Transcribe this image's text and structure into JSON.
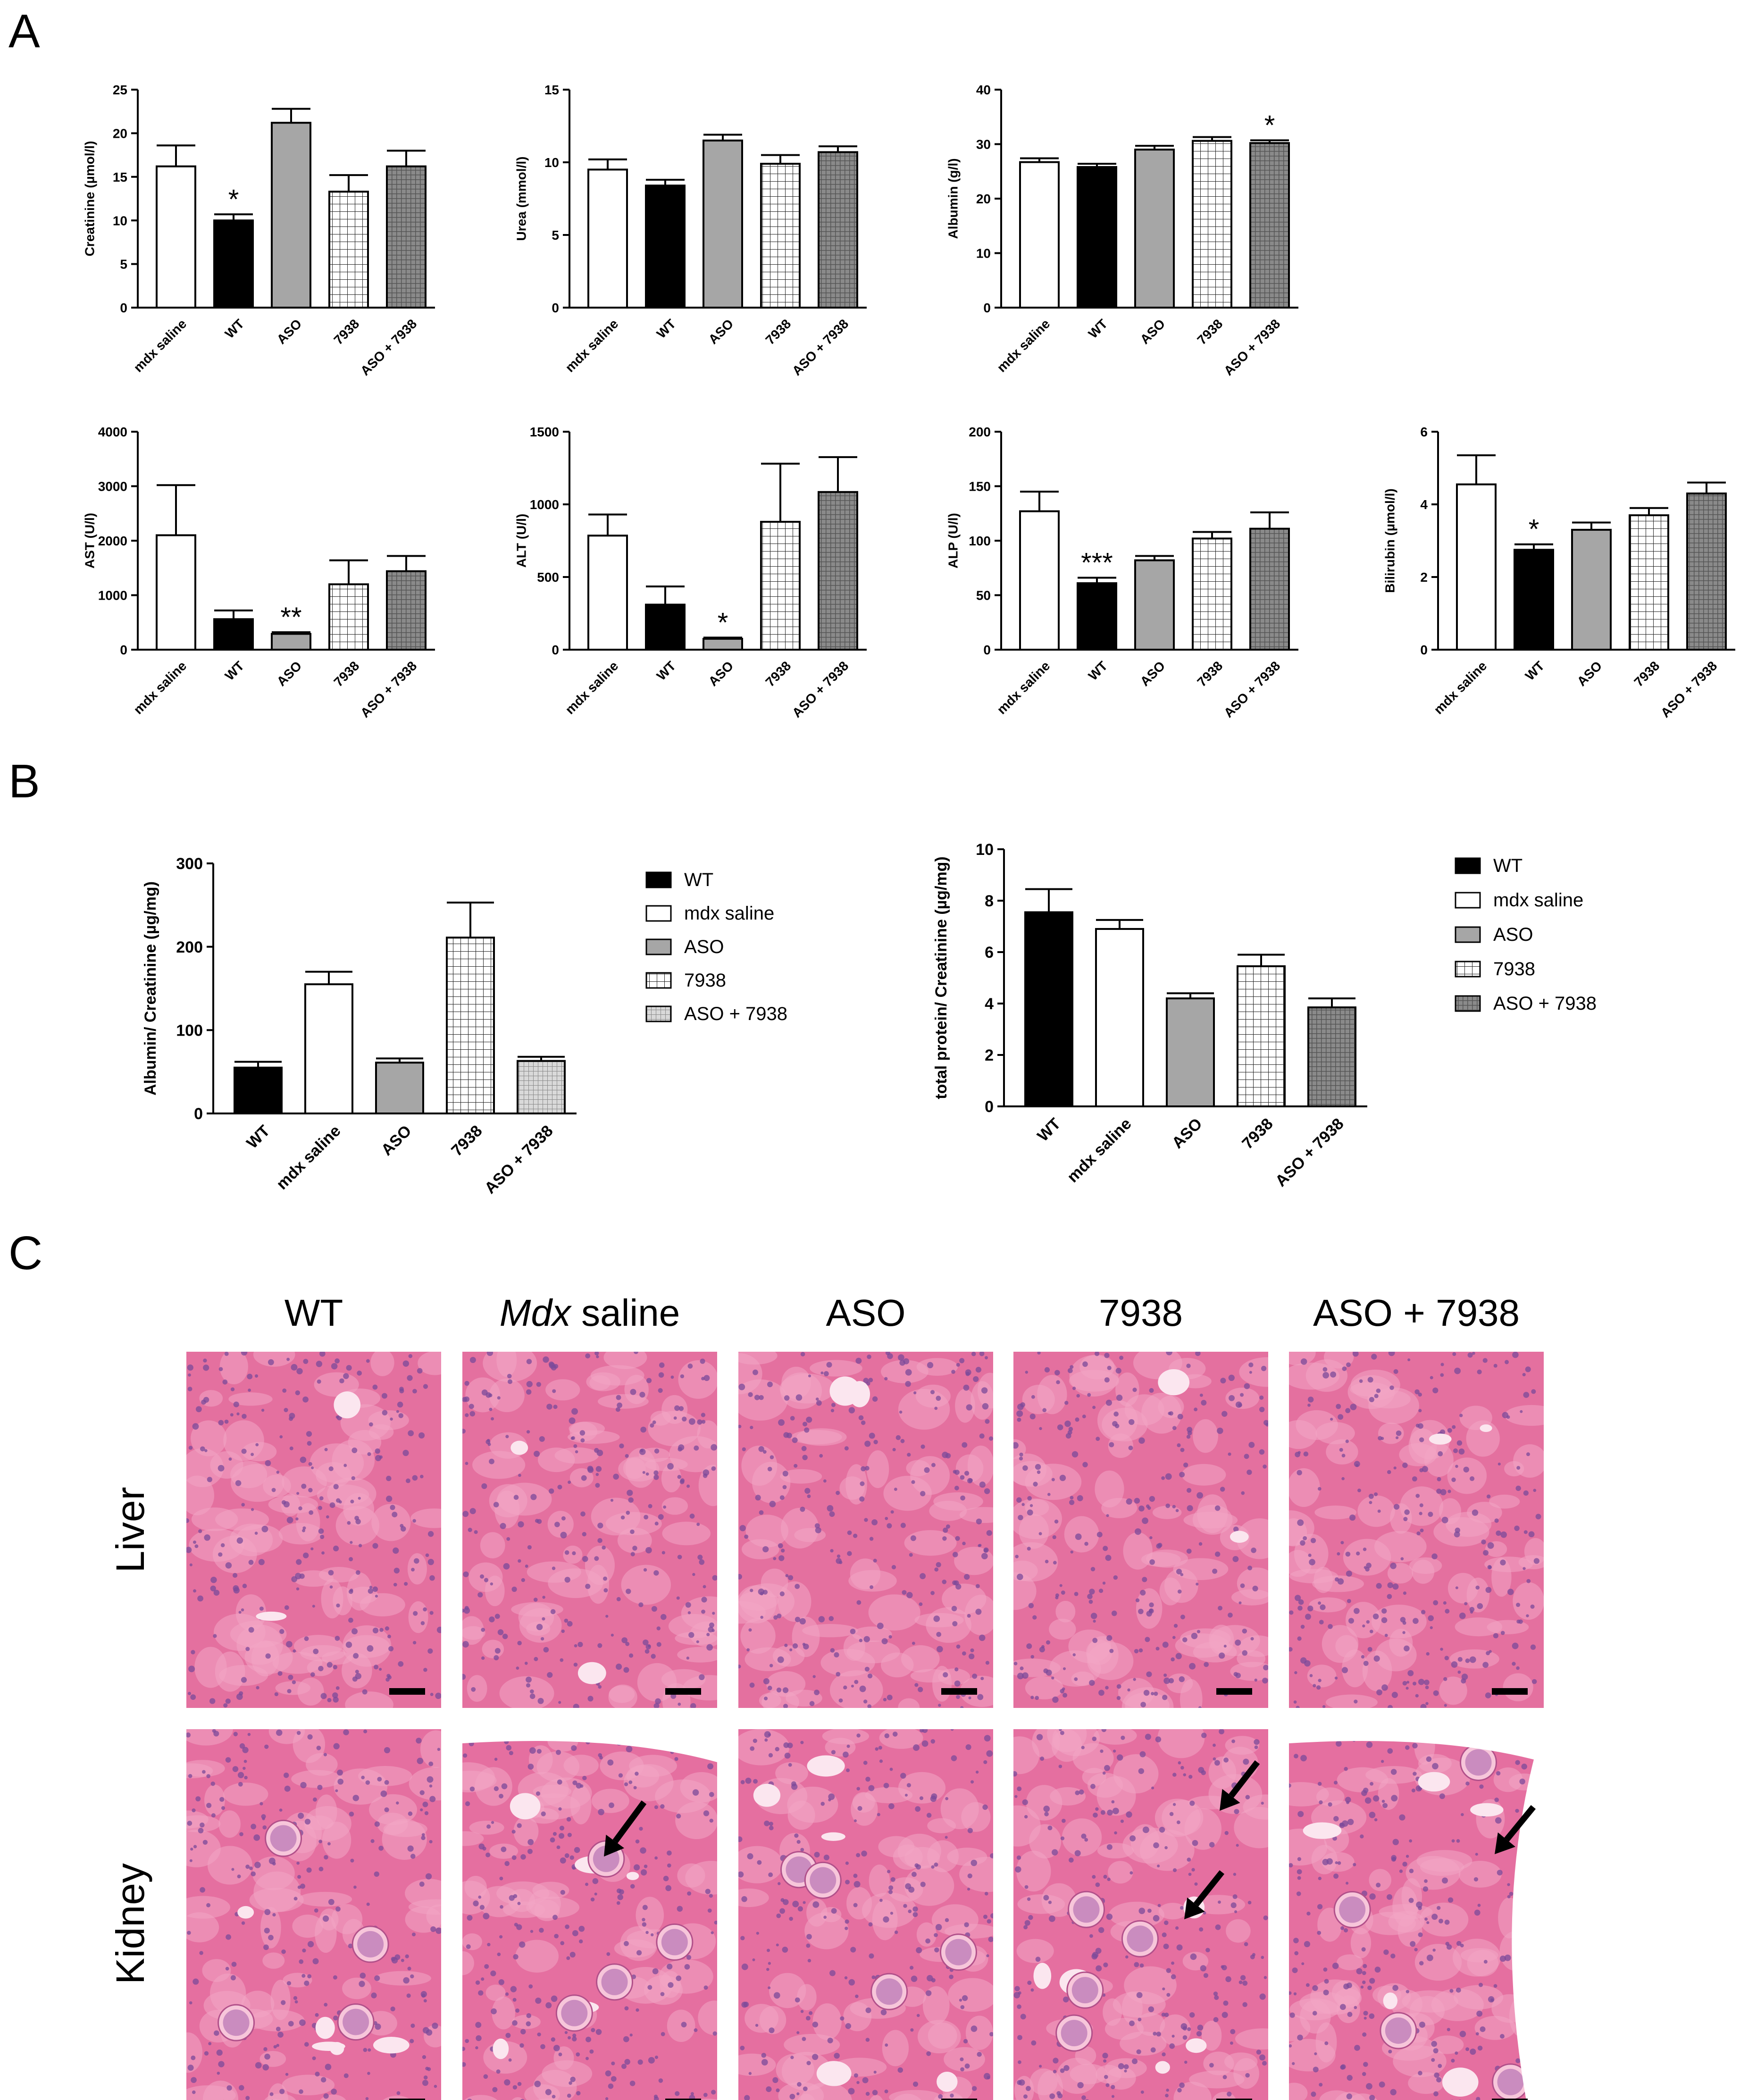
{
  "panel_labels": {
    "a": "A",
    "b": "B",
    "c": "C"
  },
  "colors": {
    "black": "#000000",
    "white": "#ffffff",
    "gray": "#a6a6a6",
    "checker_light": "#ffffff",
    "checker_dark": "#555555",
    "he_pink": "#e8729d",
    "he_light": "#f3a9c6",
    "nuclei": "#7b4a9a",
    "tissue_bg": "#f7f7f7"
  },
  "chart_data": [
    {
      "id": "creatinine",
      "type": "bar",
      "ylabel": "Creatinine (µmol/l)",
      "ylim": [
        0,
        25
      ],
      "yticks": [
        0,
        5,
        10,
        15,
        20,
        25
      ],
      "categories": [
        "mdx saline",
        "WT",
        "ASO",
        "7938",
        "ASO + 7938"
      ],
      "styles": [
        "white",
        "black",
        "gray",
        "grid",
        "dense"
      ],
      "values": [
        16.2,
        10.0,
        21.2,
        13.3,
        16.2
      ],
      "errors": [
        2.4,
        0.7,
        1.6,
        1.9,
        1.8
      ],
      "stars": [
        "",
        "*",
        "",
        "",
        ""
      ]
    },
    {
      "id": "urea",
      "type": "bar",
      "ylabel": "Urea (mmol/l)",
      "ylim": [
        0,
        15
      ],
      "yticks": [
        0,
        5,
        10,
        15
      ],
      "categories": [
        "mdx saline",
        "WT",
        "ASO",
        "7938",
        "ASO + 7938"
      ],
      "styles": [
        "white",
        "black",
        "gray",
        "grid",
        "dense"
      ],
      "values": [
        9.5,
        8.4,
        11.5,
        9.9,
        10.7
      ],
      "errors": [
        0.7,
        0.4,
        0.4,
        0.6,
        0.4
      ],
      "stars": [
        "",
        "",
        "",
        "",
        ""
      ]
    },
    {
      "id": "albumin",
      "type": "bar",
      "ylabel": "Albumin (g/l)",
      "ylim": [
        0,
        40
      ],
      "yticks": [
        0,
        10,
        20,
        30,
        40
      ],
      "categories": [
        "mdx saline",
        "WT",
        "ASO",
        "7938",
        "ASO + 7938"
      ],
      "styles": [
        "white",
        "black",
        "gray",
        "grid",
        "dense"
      ],
      "values": [
        26.7,
        25.8,
        29.0,
        30.6,
        30.2
      ],
      "errors": [
        0.7,
        0.6,
        0.7,
        0.7,
        0.5
      ],
      "stars": [
        "",
        "",
        "",
        "",
        "*"
      ]
    },
    {
      "id": "ast",
      "type": "bar",
      "ylabel": "AST (U/l)",
      "ylim": [
        0,
        4000
      ],
      "yticks": [
        0,
        1000,
        2000,
        3000,
        4000
      ],
      "categories": [
        "mdx saline",
        "WT",
        "ASO",
        "7938",
        "ASO + 7938"
      ],
      "styles": [
        "white",
        "black",
        "gray",
        "grid",
        "dense"
      ],
      "values": [
        2100,
        560,
        290,
        1200,
        1440
      ],
      "errors": [
        920,
        160,
        30,
        440,
        280
      ],
      "stars": [
        "",
        "",
        "**",
        "",
        ""
      ]
    },
    {
      "id": "alt",
      "type": "bar",
      "ylabel": "ALT (U/l)",
      "ylim": [
        0,
        1500
      ],
      "yticks": [
        0,
        500,
        1000,
        1500
      ],
      "categories": [
        "mdx saline",
        "WT",
        "ASO",
        "7938",
        "ASO + 7938"
      ],
      "styles": [
        "white",
        "black",
        "gray",
        "grid",
        "dense"
      ],
      "values": [
        785,
        310,
        75,
        880,
        1085
      ],
      "errors": [
        145,
        125,
        8,
        400,
        240
      ],
      "stars": [
        "",
        "",
        "*",
        "",
        ""
      ]
    },
    {
      "id": "alp",
      "type": "bar",
      "ylabel": "ALP (U/l)",
      "ylim": [
        0,
        200
      ],
      "yticks": [
        0,
        50,
        100,
        150,
        200
      ],
      "categories": [
        "mdx saline",
        "WT",
        "ASO",
        "7938",
        "ASO + 7938"
      ],
      "styles": [
        "white",
        "black",
        "gray",
        "grid",
        "dense"
      ],
      "values": [
        127,
        61,
        82,
        102,
        111
      ],
      "errors": [
        18,
        5,
        4,
        6,
        15
      ],
      "stars": [
        "",
        "***",
        "",
        "",
        ""
      ]
    },
    {
      "id": "bilirubin",
      "type": "bar",
      "ylabel": "Bilirubin (µmol/l)",
      "ylim": [
        0,
        6
      ],
      "yticks": [
        0,
        2,
        4,
        6
      ],
      "categories": [
        "mdx saline",
        "WT",
        "ASO",
        "7938",
        "ASO + 7938"
      ],
      "styles": [
        "white",
        "black",
        "gray",
        "grid",
        "dense"
      ],
      "values": [
        4.55,
        2.75,
        3.3,
        3.7,
        4.3
      ],
      "errors": [
        0.8,
        0.15,
        0.2,
        0.2,
        0.3
      ],
      "stars": [
        "",
        "*",
        "",
        "",
        ""
      ]
    },
    {
      "id": "alb_creat",
      "type": "bar",
      "ylabel": "Albumin/ Creatinine (µg/mg)",
      "ylim": [
        0,
        300
      ],
      "yticks": [
        0,
        100,
        200,
        300
      ],
      "categories": [
        "WT",
        "mdx saline",
        "ASO",
        "7938",
        "ASO + 7938"
      ],
      "styles": [
        "black",
        "white",
        "gray",
        "grid",
        "dense_light"
      ],
      "values": [
        55,
        155,
        61,
        211,
        63
      ],
      "errors": [
        7,
        15,
        5,
        42,
        5
      ],
      "stars": [
        "",
        "",
        "",
        "",
        ""
      ],
      "legend": [
        "WT",
        "mdx saline",
        "ASO",
        "7938",
        "ASO + 7938"
      ]
    },
    {
      "id": "prot_creat",
      "type": "bar",
      "ylabel": "total protein/ Creatinine (µg/mg)",
      "ylim": [
        0,
        10
      ],
      "yticks": [
        0,
        2,
        4,
        6,
        8,
        10
      ],
      "categories": [
        "WT",
        "mdx saline",
        "ASO",
        "7938",
        "ASO + 7938"
      ],
      "styles": [
        "black",
        "white",
        "gray",
        "grid",
        "dense"
      ],
      "values": [
        7.55,
        6.9,
        4.2,
        5.45,
        3.85
      ],
      "errors": [
        0.9,
        0.35,
        0.2,
        0.45,
        0.35
      ],
      "stars": [
        "",
        "",
        "",
        "",
        ""
      ],
      "legend": [
        "WT",
        "mdx saline",
        "ASO",
        "7938",
        "ASO + 7938"
      ]
    }
  ],
  "histology": {
    "column_headers": [
      {
        "italic": "",
        "text": "WT"
      },
      {
        "italic": "Mdx",
        "text": " saline"
      },
      {
        "italic": "",
        "text": "ASO"
      },
      {
        "italic": "",
        "text": "7938"
      },
      {
        "italic": "",
        "text": "ASO + 7938"
      }
    ],
    "row_labels": [
      "Liver",
      "Kidney"
    ]
  }
}
